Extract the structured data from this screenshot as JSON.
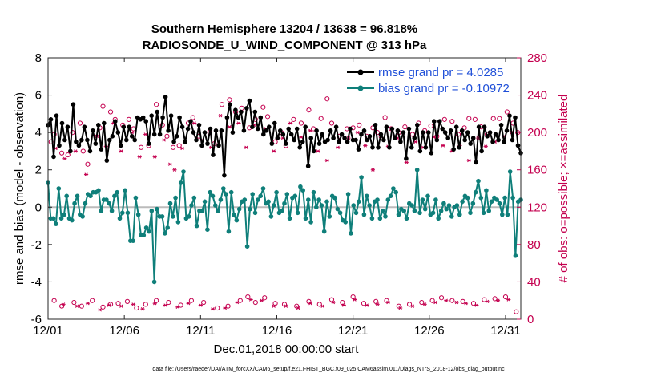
{
  "chart_data": {
    "type": "line",
    "title": "Southern Hemisphere 13204 / 13638 = 96.818%",
    "subtitle": "RADIOSONDE_U_WIND_COMPONENT @ 313 hPa",
    "xlabel": "Dec.01,2018 00:00:00 start",
    "ylabel": "rmse and bias (model - observation)",
    "ylabel_right": "# of obs: o=possible; ×=assimilated",
    "footnote": "data file: /Users/raeder/DAI/ATM_forcXX/CAM6_setup/f.e21.FHIST_BGC.f09_025.CAM6assim.011/Diags_NTrS_2018-12/obs_diag_output.nc",
    "x_range": [
      1,
      32
    ],
    "ylim": [
      -6,
      8
    ],
    "ylim_right": [
      0,
      280
    ],
    "x_ticks": [
      1,
      6,
      11,
      16,
      21,
      26,
      31
    ],
    "x_tick_labels": [
      "12/01",
      "12/06",
      "12/11",
      "12/16",
      "12/21",
      "12/26",
      "12/31"
    ],
    "y_ticks": [
      -6,
      -4,
      -2,
      0,
      2,
      4,
      6,
      8
    ],
    "y_tick_labels": [
      "-6",
      "-4",
      "-2",
      "0",
      "2",
      "4",
      "6",
      "8"
    ],
    "y_ticks_right": [
      0,
      40,
      80,
      120,
      160,
      200,
      240,
      280
    ],
    "y_tick_labels_right": [
      "0",
      "40",
      "80",
      "120",
      "160",
      "200",
      "240",
      "280"
    ],
    "legend_position": "top-right",
    "colors": {
      "rmse": "#000000",
      "bias": "#0f7f7a",
      "counts": "#c4004f",
      "zero_line": "#bbbbbb",
      "legend_text": "#1f4fd8"
    },
    "series": [
      {
        "name": "rmse grand pr = 4.0285",
        "values": [
          4.4,
          4.7,
          2.7,
          4.9,
          3.3,
          4.5,
          3.6,
          4.3,
          3.0,
          5.5,
          3.5,
          3.3,
          3.6,
          4.3,
          3.6,
          3.0,
          4.1,
          3.4,
          4.4,
          3.1,
          4.5,
          2.5,
          3.6,
          3.8,
          4.6,
          4.0,
          3.3,
          4.3,
          3.6,
          4.3,
          3.8,
          3.6,
          4.8,
          4.7,
          4.8,
          4.6,
          3.4,
          4.9,
          3.9,
          5.1,
          3.9,
          4.8,
          5.9,
          4.1,
          4.9,
          3.5,
          3.8,
          4.8,
          4.3,
          3.5,
          4.2,
          4.6,
          4.0,
          3.6,
          4.4,
          3.3,
          4.0,
          3.4,
          4.2,
          2.8,
          4.1,
          3.3,
          4.1,
          1.7,
          4.8,
          5.5,
          4.0,
          5.2,
          4.8,
          5.1,
          4.1,
          5.3,
          5.7,
          4.3,
          5.1,
          4.2,
          4.8,
          3.9,
          4.1,
          4.3,
          3.4,
          4.5,
          3.7,
          4.1,
          3.9,
          3.4,
          4.2,
          3.9,
          3.6,
          4.2,
          3.2,
          3.5,
          4.3,
          2.2,
          3.7,
          3.0,
          4.1,
          3.4,
          3.9,
          3.5,
          3.6,
          4.1,
          3.7,
          4.3,
          3.5,
          3.9,
          3.7,
          3.5,
          4.2,
          3.6,
          3.6,
          3.1,
          3.9,
          4.1,
          3.6,
          3.8,
          3.2,
          4.4,
          3.2,
          3.9,
          3.6,
          4.3,
          3.2,
          4.2,
          3.7,
          4.1,
          3.5,
          4.0,
          2.6,
          4.2,
          3.2,
          3.7,
          4.4,
          3.0,
          4.0,
          3.2,
          4.0,
          2.9,
          4.6,
          3.6,
          4.6,
          4.2,
          4.0,
          3.7,
          4.1,
          3.1,
          4.3,
          3.2,
          4.1,
          3.6,
          4.0,
          3.4,
          3.7,
          2.4,
          4.3,
          3.0,
          4.3,
          3.8,
          4.0,
          3.5,
          3.9,
          3.6,
          4.4,
          3.5,
          4.1,
          4.9,
          3.6,
          4.8,
          3.3,
          2.9
        ]
      },
      {
        "name": "bias grand pr = -0.10972",
        "values": [
          1.3,
          -0.6,
          -0.6,
          -0.9,
          1.0,
          -0.6,
          -0.4,
          0.6,
          -0.6,
          -0.7,
          0.2,
          0.6,
          -0.4,
          -0.5,
          0.2,
          0.7,
          0.6,
          0.8,
          0.8,
          0.9,
          -0.2,
          0.4,
          0.4,
          0.2,
          -0.2,
          0.6,
          0.8,
          -0.6,
          -0.3,
          0.9,
          -0.3,
          -1.8,
          -1.8,
          0.5,
          -0.4,
          -1.5,
          -1.5,
          -1.1,
          -1.3,
          -0.2,
          -4.0,
          -0.1,
          -0.5,
          -0.5,
          -1.4,
          -1.1,
          0.2,
          -0.5,
          0.5,
          -0.8,
          1.3,
          1.9,
          -0.6,
          -0.5,
          0.1,
          0.5,
          -1.0,
          -0.2,
          -0.2,
          0.3,
          -1.2,
          0.8,
          0.6,
          0.1,
          -0.2,
          0.4,
          1.0,
          0.7,
          -1.3,
          0.8,
          -0.4,
          -0.7,
          -0.1,
          0.3,
          0.4,
          -2.1,
          -0.1,
          0.7,
          -0.3,
          0.4,
          0.6,
          1.0,
          0.2,
          0.3,
          -0.5,
          0.1,
          0.8,
          -0.3,
          -0.2,
          0.2,
          0.7,
          -0.6,
          0.5,
          0.6,
          -0.3,
          1.1,
          0.9,
          -0.6,
          0.4,
          -0.8,
          0.8,
          0.0,
          0.4,
          0.1,
          -1.3,
          0.3,
          -0.5,
          0.6,
          0.5,
          -0.1,
          -0.3,
          -0.7,
          -0.8,
          0.7,
          -1.4,
          0.1,
          -0.3,
          0.3,
          1.6,
          -0.4,
          0.6,
          0.1,
          -0.6,
          0.3,
          0.4,
          -0.6,
          -0.2,
          -0.5,
          0.4,
          0.6,
          1.0,
          0.8,
          -0.4,
          -0.1,
          -0.2,
          -0.6,
          0.2,
          0.1,
          -0.2,
          2.0,
          -0.3,
          0.4,
          -0.1,
          0.6,
          -0.4,
          -0.3,
          0.4,
          -0.6,
          -0.2,
          0.2,
          -0.1,
          0.1,
          -0.5,
          0.0,
          0.1,
          -0.4,
          0.3,
          0.6,
          0.5,
          -0.3,
          0.2,
          0.8,
          1.4,
          0.5,
          -0.3,
          0.9,
          -0.2,
          0.3,
          0.5,
          0.4,
          0.2,
          -0.4,
          0.5,
          -0.4,
          1.9,
          0.5,
          -2.6,
          0.3,
          0.4
        ]
      }
    ],
    "obs_possible": [
      {
        "x": 1.2,
        "y": 190
      },
      {
        "x": 1.4,
        "y": 198
      },
      {
        "x": 1.9,
        "y": 178
      },
      {
        "x": 2.3,
        "y": 176
      },
      {
        "x": 2.6,
        "y": 200
      },
      {
        "x": 3.1,
        "y": 210
      },
      {
        "x": 3.3,
        "y": 180
      },
      {
        "x": 3.6,
        "y": 166
      },
      {
        "x": 4.4,
        "y": 205
      },
      {
        "x": 4.6,
        "y": 228
      },
      {
        "x": 5.1,
        "y": 222
      },
      {
        "x": 5.4,
        "y": 214
      },
      {
        "x": 5.9,
        "y": 208
      },
      {
        "x": 6.3,
        "y": 214
      },
      {
        "x": 6.6,
        "y": 204
      },
      {
        "x": 7.1,
        "y": 184
      },
      {
        "x": 7.6,
        "y": 186
      },
      {
        "x": 8.1,
        "y": 230
      },
      {
        "x": 8.5,
        "y": 208
      },
      {
        "x": 8.8,
        "y": 196
      },
      {
        "x": 9.2,
        "y": 184
      },
      {
        "x": 9.6,
        "y": 186
      },
      {
        "x": 10.2,
        "y": 210
      },
      {
        "x": 10.5,
        "y": 216
      },
      {
        "x": 10.9,
        "y": 196
      },
      {
        "x": 11.6,
        "y": 200
      },
      {
        "x": 11.9,
        "y": 188
      },
      {
        "x": 12.4,
        "y": 230
      },
      {
        "x": 12.9,
        "y": 235
      },
      {
        "x": 13.3,
        "y": 222
      },
      {
        "x": 13.7,
        "y": 226
      },
      {
        "x": 14.2,
        "y": 205
      },
      {
        "x": 14.6,
        "y": 214
      },
      {
        "x": 15.1,
        "y": 227
      },
      {
        "x": 15.4,
        "y": 217
      },
      {
        "x": 15.9,
        "y": 190
      },
      {
        "x": 16.3,
        "y": 200
      },
      {
        "x": 16.6,
        "y": 186
      },
      {
        "x": 17.1,
        "y": 214
      },
      {
        "x": 17.6,
        "y": 210
      },
      {
        "x": 18.1,
        "y": 224
      },
      {
        "x": 18.4,
        "y": 204
      },
      {
        "x": 18.9,
        "y": 215
      },
      {
        "x": 19.3,
        "y": 236
      },
      {
        "x": 19.6,
        "y": 210
      },
      {
        "x": 20.1,
        "y": 196
      },
      {
        "x": 20.6,
        "y": 204
      },
      {
        "x": 21.0,
        "y": 205
      },
      {
        "x": 21.4,
        "y": 208
      },
      {
        "x": 21.9,
        "y": 196
      },
      {
        "x": 22.3,
        "y": 205
      },
      {
        "x": 22.6,
        "y": 200
      },
      {
        "x": 23.1,
        "y": 216
      },
      {
        "x": 23.5,
        "y": 204
      },
      {
        "x": 24.0,
        "y": 200
      },
      {
        "x": 24.4,
        "y": 206
      },
      {
        "x": 24.9,
        "y": 198
      },
      {
        "x": 25.3,
        "y": 210
      },
      {
        "x": 25.7,
        "y": 202
      },
      {
        "x": 26.1,
        "y": 207
      },
      {
        "x": 26.5,
        "y": 196
      },
      {
        "x": 27.0,
        "y": 214
      },
      {
        "x": 27.5,
        "y": 212
      },
      {
        "x": 27.9,
        "y": 198
      },
      {
        "x": 28.3,
        "y": 205
      },
      {
        "x": 28.6,
        "y": 215
      },
      {
        "x": 29.0,
        "y": 214
      },
      {
        "x": 29.4,
        "y": 206
      },
      {
        "x": 29.8,
        "y": 198
      },
      {
        "x": 30.2,
        "y": 215
      },
      {
        "x": 30.6,
        "y": 215
      },
      {
        "x": 31.1,
        "y": 222
      },
      {
        "x": 31.5,
        "y": 210
      },
      {
        "x": 31.8,
        "y": 200
      },
      {
        "x": 1.4,
        "y": 20
      },
      {
        "x": 1.9,
        "y": 14
      },
      {
        "x": 2.7,
        "y": 18
      },
      {
        "x": 3.2,
        "y": 14
      },
      {
        "x": 3.9,
        "y": 20
      },
      {
        "x": 4.6,
        "y": 13
      },
      {
        "x": 5.1,
        "y": 16
      },
      {
        "x": 5.6,
        "y": 17
      },
      {
        "x": 6.2,
        "y": 19
      },
      {
        "x": 6.8,
        "y": 12
      },
      {
        "x": 7.4,
        "y": 16
      },
      {
        "x": 8.1,
        "y": 20
      },
      {
        "x": 8.9,
        "y": 18
      },
      {
        "x": 9.7,
        "y": 15
      },
      {
        "x": 10.4,
        "y": 20
      },
      {
        "x": 11.2,
        "y": 18
      },
      {
        "x": 12.1,
        "y": 12
      },
      {
        "x": 12.8,
        "y": 14
      },
      {
        "x": 13.6,
        "y": 20
      },
      {
        "x": 14.1,
        "y": 24
      },
      {
        "x": 14.6,
        "y": 18
      },
      {
        "x": 15.2,
        "y": 23
      },
      {
        "x": 15.9,
        "y": 17
      },
      {
        "x": 16.5,
        "y": 16
      },
      {
        "x": 17.3,
        "y": 14
      },
      {
        "x": 18.1,
        "y": 19
      },
      {
        "x": 18.8,
        "y": 16
      },
      {
        "x": 19.6,
        "y": 21
      },
      {
        "x": 20.3,
        "y": 18
      },
      {
        "x": 21.0,
        "y": 24
      },
      {
        "x": 21.7,
        "y": 17
      },
      {
        "x": 22.5,
        "y": 19
      },
      {
        "x": 23.2,
        "y": 20
      },
      {
        "x": 24.0,
        "y": 14
      },
      {
        "x": 24.7,
        "y": 16
      },
      {
        "x": 25.5,
        "y": 18
      },
      {
        "x": 26.2,
        "y": 20
      },
      {
        "x": 26.8,
        "y": 23
      },
      {
        "x": 27.5,
        "y": 20
      },
      {
        "x": 28.2,
        "y": 19
      },
      {
        "x": 28.9,
        "y": 17
      },
      {
        "x": 29.6,
        "y": 21
      },
      {
        "x": 30.3,
        "y": 22
      },
      {
        "x": 31.0,
        "y": 24
      },
      {
        "x": 31.7,
        "y": 8
      }
    ],
    "obs_assimilated": [
      {
        "x": 1.5,
        "y": 183
      },
      {
        "x": 2.1,
        "y": 172
      },
      {
        "x": 2.8,
        "y": 180
      },
      {
        "x": 3.5,
        "y": 155
      },
      {
        "x": 4.2,
        "y": 196
      },
      {
        "x": 4.8,
        "y": 185
      },
      {
        "x": 5.3,
        "y": 210
      },
      {
        "x": 5.8,
        "y": 180
      },
      {
        "x": 6.5,
        "y": 200
      },
      {
        "x": 7.0,
        "y": 174
      },
      {
        "x": 7.4,
        "y": 198
      },
      {
        "x": 8.0,
        "y": 174
      },
      {
        "x": 8.6,
        "y": 192
      },
      {
        "x": 9.0,
        "y": 166
      },
      {
        "x": 9.3,
        "y": 160
      },
      {
        "x": 9.8,
        "y": 183
      },
      {
        "x": 10.6,
        "y": 210
      },
      {
        "x": 11.1,
        "y": 192
      },
      {
        "x": 11.7,
        "y": 184
      },
      {
        "x": 12.3,
        "y": 218
      },
      {
        "x": 12.9,
        "y": 206
      },
      {
        "x": 13.5,
        "y": 210
      },
      {
        "x": 14.0,
        "y": 184
      },
      {
        "x": 14.5,
        "y": 208
      },
      {
        "x": 15.3,
        "y": 204
      },
      {
        "x": 15.8,
        "y": 180
      },
      {
        "x": 16.4,
        "y": 194
      },
      {
        "x": 16.9,
        "y": 210
      },
      {
        "x": 17.6,
        "y": 195
      },
      {
        "x": 18.2,
        "y": 202
      },
      {
        "x": 18.7,
        "y": 180
      },
      {
        "x": 19.3,
        "y": 170
      },
      {
        "x": 20.0,
        "y": 184
      },
      {
        "x": 20.7,
        "y": 194
      },
      {
        "x": 21.3,
        "y": 200
      },
      {
        "x": 21.8,
        "y": 186
      },
      {
        "x": 22.3,
        "y": 160
      },
      {
        "x": 22.8,
        "y": 196
      },
      {
        "x": 23.3,
        "y": 185
      },
      {
        "x": 23.9,
        "y": 194
      },
      {
        "x": 24.5,
        "y": 168
      },
      {
        "x": 25.1,
        "y": 190
      },
      {
        "x": 25.6,
        "y": 184
      },
      {
        "x": 26.3,
        "y": 195
      },
      {
        "x": 26.9,
        "y": 186
      },
      {
        "x": 27.5,
        "y": 180
      },
      {
        "x": 28.0,
        "y": 186
      },
      {
        "x": 28.6,
        "y": 170
      },
      {
        "x": 29.2,
        "y": 194
      },
      {
        "x": 29.7,
        "y": 185
      },
      {
        "x": 30.3,
        "y": 190
      },
      {
        "x": 30.9,
        "y": 196
      },
      {
        "x": 31.4,
        "y": 200
      },
      {
        "x": 2.0,
        "y": 16
      },
      {
        "x": 2.9,
        "y": 14
      },
      {
        "x": 3.6,
        "y": 17
      },
      {
        "x": 4.4,
        "y": 10
      },
      {
        "x": 5.0,
        "y": 15
      },
      {
        "x": 5.8,
        "y": 14
      },
      {
        "x": 6.6,
        "y": 16
      },
      {
        "x": 7.2,
        "y": 11
      },
      {
        "x": 8.0,
        "y": 17
      },
      {
        "x": 8.7,
        "y": 15
      },
      {
        "x": 9.5,
        "y": 13
      },
      {
        "x": 10.2,
        "y": 17
      },
      {
        "x": 11.0,
        "y": 15
      },
      {
        "x": 11.8,
        "y": 11
      },
      {
        "x": 12.6,
        "y": 12
      },
      {
        "x": 13.4,
        "y": 18
      },
      {
        "x": 14.3,
        "y": 21
      },
      {
        "x": 15.0,
        "y": 20
      },
      {
        "x": 15.8,
        "y": 14
      },
      {
        "x": 16.6,
        "y": 14
      },
      {
        "x": 17.4,
        "y": 12
      },
      {
        "x": 18.2,
        "y": 17
      },
      {
        "x": 19.0,
        "y": 14
      },
      {
        "x": 19.7,
        "y": 18
      },
      {
        "x": 20.4,
        "y": 15
      },
      {
        "x": 21.1,
        "y": 21
      },
      {
        "x": 21.9,
        "y": 15
      },
      {
        "x": 22.6,
        "y": 16
      },
      {
        "x": 23.3,
        "y": 18
      },
      {
        "x": 24.1,
        "y": 12
      },
      {
        "x": 24.9,
        "y": 14
      },
      {
        "x": 25.7,
        "y": 16
      },
      {
        "x": 26.4,
        "y": 18
      },
      {
        "x": 27.1,
        "y": 20
      },
      {
        "x": 27.8,
        "y": 18
      },
      {
        "x": 28.4,
        "y": 17
      },
      {
        "x": 29.1,
        "y": 15
      },
      {
        "x": 29.8,
        "y": 19
      },
      {
        "x": 30.5,
        "y": 20
      },
      {
        "x": 31.2,
        "y": 21
      }
    ]
  }
}
